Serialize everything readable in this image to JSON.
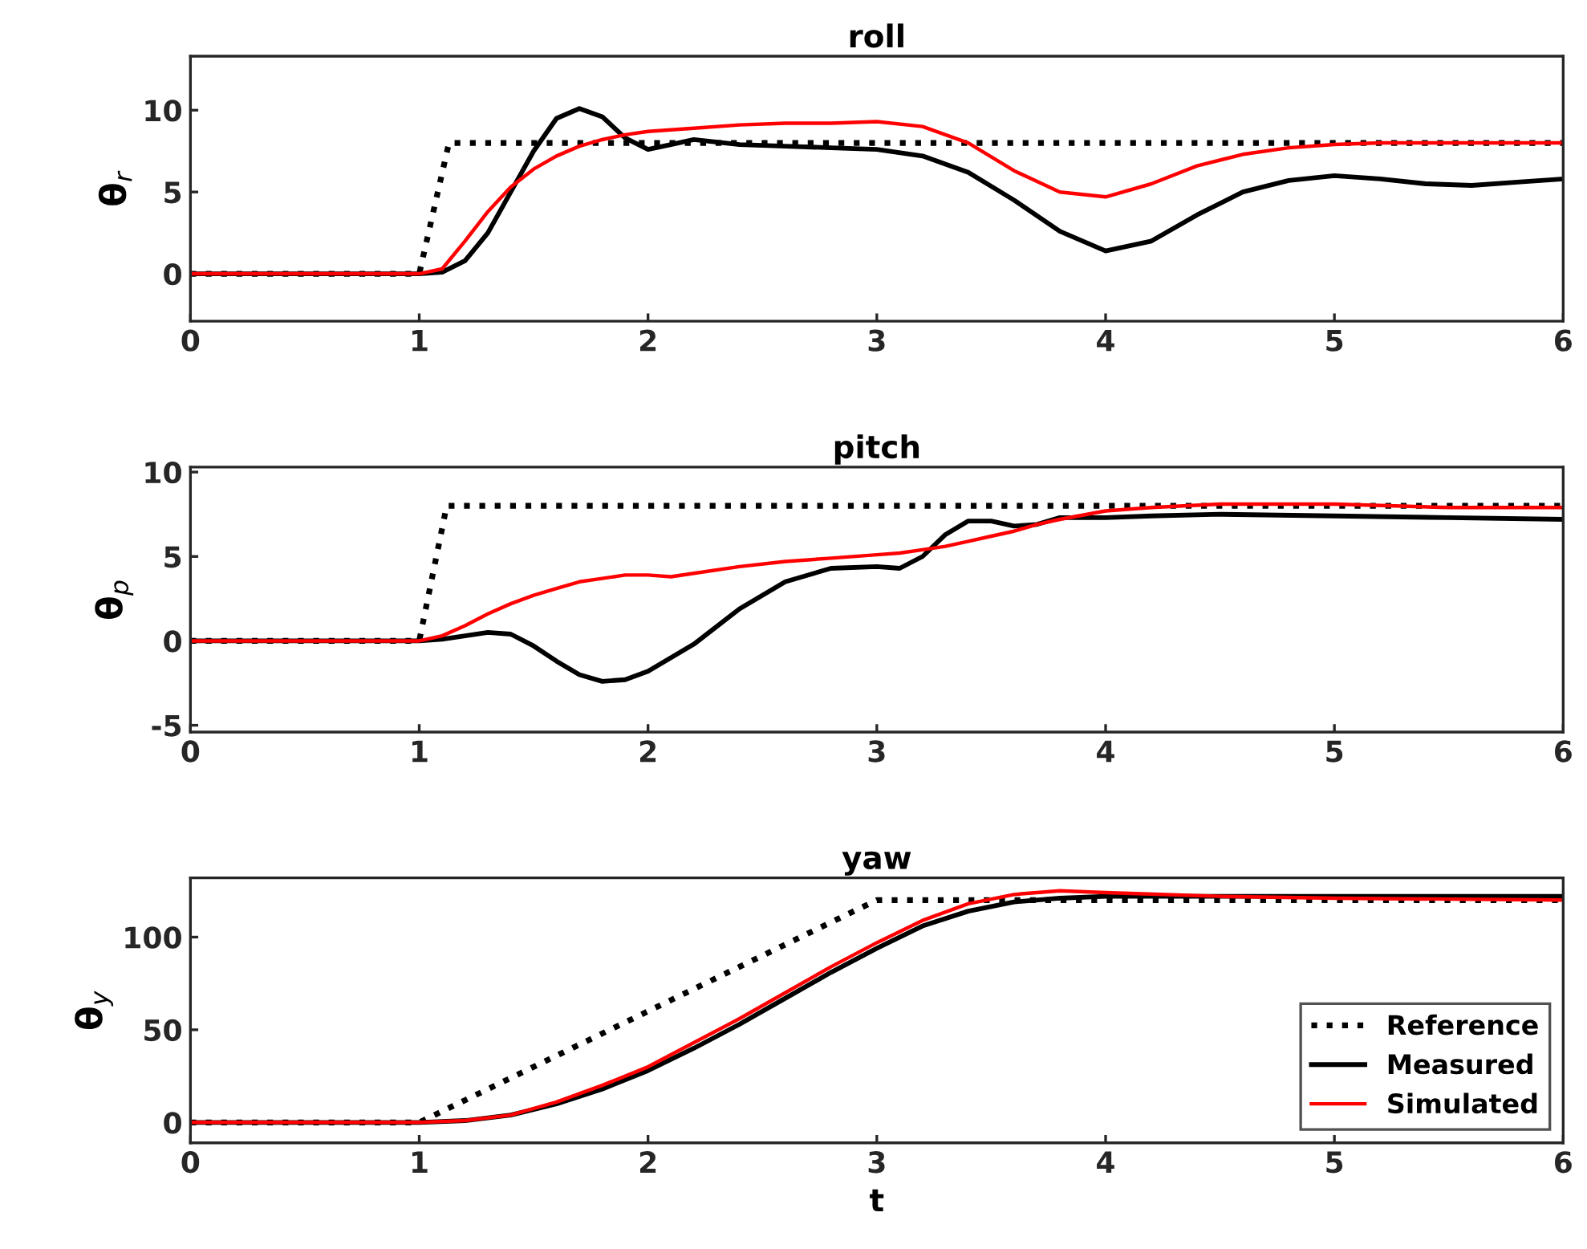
{
  "chart_data": [
    {
      "type": "line",
      "title": "roll",
      "ylabel": "θ$_{r}$",
      "xlim": [
        0,
        6
      ],
      "xticks": [
        0,
        1,
        2,
        3,
        4,
        5,
        6
      ],
      "ylim": [
        -2.9,
        13.3
      ],
      "yticks": [
        0,
        5,
        10
      ],
      "grid": false,
      "legend": false,
      "series": [
        {
          "color": "#000000",
          "line_style": "dotted",
          "x": [
            0,
            1,
            1.13,
            6
          ],
          "values": [
            0,
            0,
            8,
            8
          ]
        },
        {
          "color": "#000000",
          "line_style": "solid",
          "x": [
            0,
            1,
            1.1,
            1.2,
            1.3,
            1.4,
            1.5,
            1.6,
            1.7,
            1.8,
            1.9,
            2.0,
            2.1,
            2.2,
            2.4,
            2.6,
            2.8,
            3.0,
            3.2,
            3.4,
            3.6,
            3.8,
            4.0,
            4.2,
            4.4,
            4.6,
            4.8,
            5.0,
            5.2,
            5.4,
            5.6,
            5.8,
            6.0
          ],
          "values": [
            0,
            0,
            0.1,
            0.8,
            2.5,
            5,
            7.5,
            9.5,
            10.1,
            9.6,
            8.3,
            7.6,
            7.9,
            8.2,
            7.9,
            7.8,
            7.7,
            7.6,
            7.2,
            6.2,
            4.5,
            2.6,
            1.4,
            2.0,
            3.6,
            5.0,
            5.7,
            6.0,
            5.8,
            5.5,
            5.4,
            5.6,
            5.8
          ]
        },
        {
          "color": "#ff0000",
          "line_style": "solid",
          "x": [
            0,
            1,
            1.1,
            1.2,
            1.3,
            1.4,
            1.5,
            1.6,
            1.7,
            1.8,
            1.9,
            2.0,
            2.1,
            2.2,
            2.4,
            2.6,
            2.8,
            3.0,
            3.2,
            3.4,
            3.6,
            3.8,
            4.0,
            4.2,
            4.4,
            4.6,
            4.8,
            5.0,
            5.2,
            5.4,
            5.6,
            5.8,
            6.0
          ],
          "values": [
            0,
            0,
            0.3,
            2.0,
            3.8,
            5.3,
            6.4,
            7.2,
            7.8,
            8.2,
            8.5,
            8.7,
            8.8,
            8.9,
            9.1,
            9.2,
            9.2,
            9.3,
            9.0,
            8.0,
            6.3,
            5.0,
            4.7,
            5.5,
            6.6,
            7.3,
            7.7,
            7.9,
            8.0,
            8.0,
            8.0,
            8.0,
            8.0
          ]
        }
      ]
    },
    {
      "type": "line",
      "title": "pitch",
      "ylabel": "θ$_{p}$",
      "xlim": [
        0,
        6
      ],
      "xticks": [
        0,
        1,
        2,
        3,
        4,
        5,
        6
      ],
      "ylim": [
        -5.4,
        10.3
      ],
      "yticks": [
        -5,
        0,
        5,
        10
      ],
      "grid": false,
      "legend": false,
      "series": [
        {
          "color": "#000000",
          "line_style": "dotted",
          "x": [
            0,
            1,
            1.12,
            6
          ],
          "values": [
            0,
            0,
            8,
            8
          ]
        },
        {
          "color": "#000000",
          "line_style": "solid",
          "x": [
            0,
            1,
            1.1,
            1.2,
            1.3,
            1.4,
            1.5,
            1.6,
            1.7,
            1.8,
            1.9,
            2.0,
            2.2,
            2.4,
            2.6,
            2.8,
            3.0,
            3.1,
            3.2,
            3.3,
            3.4,
            3.5,
            3.6,
            3.7,
            3.8,
            4.0,
            4.2,
            4.5,
            5.0,
            5.5,
            6.0
          ],
          "values": [
            0,
            0,
            0.1,
            0.3,
            0.5,
            0.4,
            -0.3,
            -1.2,
            -2.0,
            -2.4,
            -2.3,
            -1.8,
            -0.2,
            1.9,
            3.5,
            4.3,
            4.4,
            4.3,
            5.0,
            6.3,
            7.1,
            7.1,
            6.8,
            6.9,
            7.3,
            7.3,
            7.4,
            7.5,
            7.4,
            7.3,
            7.2
          ]
        },
        {
          "color": "#ff0000",
          "line_style": "solid",
          "x": [
            0,
            1,
            1.1,
            1.2,
            1.3,
            1.4,
            1.5,
            1.6,
            1.7,
            1.8,
            1.9,
            2.0,
            2.1,
            2.2,
            2.4,
            2.6,
            2.8,
            3.0,
            3.1,
            3.2,
            3.3,
            3.4,
            3.5,
            3.6,
            3.7,
            3.8,
            4.0,
            4.2,
            4.5,
            5.0,
            5.5,
            6.0
          ],
          "values": [
            0,
            0,
            0.3,
            0.9,
            1.6,
            2.2,
            2.7,
            3.1,
            3.5,
            3.7,
            3.9,
            3.9,
            3.8,
            4.0,
            4.4,
            4.7,
            4.9,
            5.1,
            5.2,
            5.4,
            5.6,
            5.9,
            6.2,
            6.5,
            6.9,
            7.2,
            7.7,
            7.9,
            8.1,
            8.1,
            7.9,
            7.9
          ]
        }
      ]
    },
    {
      "type": "line",
      "title": "yaw",
      "xlabel": "t",
      "ylabel": "θ$_{y}$",
      "xlim": [
        0,
        6
      ],
      "xticks": [
        0,
        1,
        2,
        3,
        4,
        5,
        6
      ],
      "ylim": [
        -11,
        132
      ],
      "yticks": [
        0,
        50,
        100
      ],
      "grid": false,
      "legend": "bottom right",
      "series": [
        {
          "name": "Reference",
          "color": "#000000",
          "line_style": "dotted",
          "x": [
            0,
            1,
            3,
            6
          ],
          "values": [
            0,
            0,
            120,
            120
          ]
        },
        {
          "name": "Measured",
          "color": "#000000",
          "line_style": "solid",
          "x": [
            0,
            1,
            1.2,
            1.4,
            1.6,
            1.8,
            2.0,
            2.2,
            2.4,
            2.6,
            2.8,
            3.0,
            3.2,
            3.4,
            3.6,
            3.8,
            4.0,
            4.5,
            5.0,
            6.0
          ],
          "values": [
            0,
            0,
            1,
            4,
            10,
            18,
            28,
            40,
            53,
            67,
            81,
            94,
            106,
            114,
            119,
            121,
            122,
            122,
            122,
            122
          ]
        },
        {
          "name": "Simulated",
          "color": "#ff0000",
          "line_style": "solid",
          "x": [
            0,
            1,
            1.2,
            1.4,
            1.6,
            1.8,
            2.0,
            2.2,
            2.4,
            2.6,
            2.8,
            3.0,
            3.2,
            3.4,
            3.6,
            3.8,
            4.0,
            4.5,
            5.0,
            6.0
          ],
          "values": [
            0,
            0,
            1,
            4,
            11,
            20,
            30,
            43,
            56,
            70,
            84,
            97,
            109,
            118,
            123,
            125,
            124,
            122,
            121,
            120
          ]
        }
      ]
    }
  ]
}
